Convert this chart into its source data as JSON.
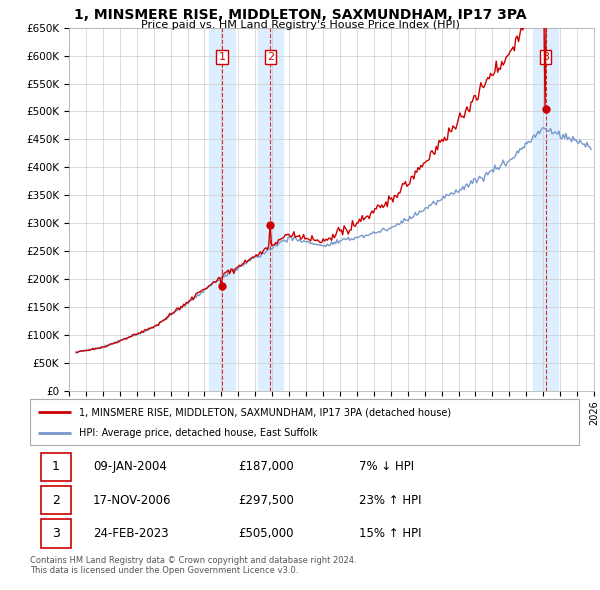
{
  "title": "1, MINSMERE RISE, MIDDLETON, SAXMUNDHAM, IP17 3PA",
  "subtitle": "Price paid vs. HM Land Registry's House Price Index (HPI)",
  "ylabel_ticks": [
    "£0",
    "£50K",
    "£100K",
    "£150K",
    "£200K",
    "£250K",
    "£300K",
    "£350K",
    "£400K",
    "£450K",
    "£500K",
    "£550K",
    "£600K",
    "£650K"
  ],
  "ytick_values": [
    0,
    50000,
    100000,
    150000,
    200000,
    250000,
    300000,
    350000,
    400000,
    450000,
    500000,
    550000,
    600000,
    650000
  ],
  "xlim_years": [
    1995,
    2026
  ],
  "ylim": [
    0,
    650000
  ],
  "sale1_price": 187000,
  "sale1_date": "09-JAN-2004",
  "sale1_pct": "7% ↓ HPI",
  "sale2_price": 297500,
  "sale2_date": "17-NOV-2006",
  "sale2_pct": "23% ↑ HPI",
  "sale3_price": 505000,
  "sale3_date": "24-FEB-2023",
  "sale3_pct": "15% ↑ HPI",
  "sale1_x": 2004.03,
  "sale2_x": 2006.89,
  "sale3_x": 2023.15,
  "red_color": "#cc0000",
  "blue_color": "#7799cc",
  "shade_color": "#ddeeff",
  "grid_color": "#cccccc",
  "legend_label_red": "1, MINSMERE RISE, MIDDLETON, SAXMUNDHAM, IP17 3PA (detached house)",
  "legend_label_blue": "HPI: Average price, detached house, East Suffolk",
  "footer1": "Contains HM Land Registry data © Crown copyright and database right 2024.",
  "footer2": "This data is licensed under the Open Government Licence v3.0."
}
